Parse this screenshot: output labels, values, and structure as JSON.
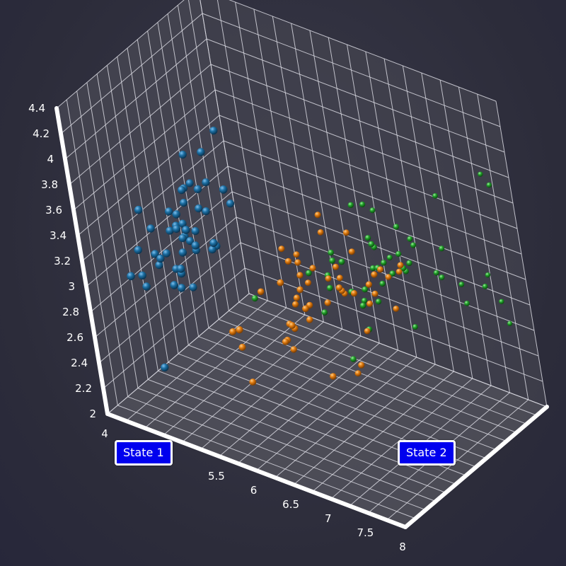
{
  "chart_data": {
    "type": "scatter3d",
    "colors": {
      "series_a": "#1c6fa3",
      "series_b": "#e07b10",
      "series_c": "#22a02a",
      "grid": "#d8d8e0",
      "axis": "#ffffff",
      "background": "#2f2f3e",
      "label_bg": "#0000ee"
    },
    "axes": {
      "x": {
        "range": [
          4,
          8
        ],
        "ticks": [
          "4",
          "4.5",
          "5",
          "5.5",
          "6",
          "6.5",
          "7",
          "7.5",
          "8"
        ]
      },
      "y": {
        "range": [
          2,
          4.4
        ],
        "ticks": [
          "2",
          "2.2",
          "2.4",
          "2.6",
          "2.8",
          "3",
          "3.2",
          "3.4",
          "3.6",
          "3.8",
          "4",
          "4.2",
          "4.4"
        ]
      },
      "z": {
        "range": [
          0,
          7
        ]
      }
    },
    "annotations": [
      {
        "id": "state1",
        "text": "State 1"
      },
      {
        "id": "state2",
        "text": "State 2"
      }
    ],
    "series": [
      {
        "color": "#1c6fa3",
        "points": [
          [
            5.1,
            3.5,
            1.4
          ],
          [
            4.9,
            3.0,
            1.4
          ],
          [
            4.7,
            3.2,
            1.3
          ],
          [
            4.6,
            3.1,
            1.5
          ],
          [
            5.0,
            3.6,
            1.4
          ],
          [
            5.4,
            3.9,
            1.7
          ],
          [
            4.6,
            3.4,
            1.4
          ],
          [
            5.0,
            3.4,
            1.5
          ],
          [
            4.4,
            2.9,
            1.4
          ],
          [
            4.9,
            3.1,
            1.5
          ],
          [
            5.4,
            3.7,
            1.5
          ],
          [
            4.8,
            3.4,
            1.6
          ],
          [
            4.8,
            3.0,
            1.4
          ],
          [
            4.3,
            3.0,
            1.1
          ],
          [
            5.8,
            4.0,
            1.2
          ],
          [
            5.7,
            4.4,
            1.5
          ],
          [
            5.4,
            3.9,
            1.3
          ],
          [
            5.1,
            3.5,
            1.4
          ],
          [
            5.7,
            3.8,
            1.7
          ],
          [
            5.1,
            3.8,
            1.5
          ],
          [
            5.4,
            3.4,
            1.7
          ],
          [
            5.1,
            3.7,
            1.5
          ],
          [
            4.6,
            3.6,
            1.0
          ],
          [
            5.1,
            3.3,
            1.7
          ],
          [
            4.8,
            3.4,
            1.9
          ],
          [
            5.0,
            3.0,
            1.6
          ],
          [
            5.0,
            3.4,
            1.6
          ],
          [
            5.2,
            3.5,
            1.5
          ],
          [
            5.2,
            3.4,
            1.4
          ],
          [
            4.7,
            3.2,
            1.6
          ],
          [
            4.8,
            3.1,
            1.6
          ],
          [
            5.4,
            3.4,
            1.5
          ],
          [
            5.2,
            4.1,
            1.5
          ],
          [
            5.5,
            4.2,
            1.4
          ],
          [
            4.9,
            3.1,
            1.5
          ],
          [
            5.0,
            3.2,
            1.2
          ],
          [
            5.5,
            3.5,
            1.3
          ],
          [
            4.9,
            3.6,
            1.4
          ],
          [
            4.4,
            3.0,
            1.3
          ],
          [
            5.1,
            3.4,
            1.5
          ],
          [
            5.0,
            3.5,
            1.3
          ],
          [
            4.5,
            2.3,
            1.3
          ],
          [
            4.4,
            3.2,
            1.3
          ],
          [
            5.0,
            3.5,
            1.6
          ],
          [
            5.1,
            3.8,
            1.9
          ],
          [
            4.8,
            3.0,
            1.4
          ],
          [
            5.1,
            3.8,
            1.6
          ],
          [
            4.6,
            3.2,
            1.4
          ],
          [
            5.3,
            3.7,
            1.5
          ],
          [
            5.0,
            3.3,
            1.4
          ]
        ]
      },
      {
        "color": "#e07b10",
        "points": [
          [
            7.0,
            3.2,
            4.7
          ],
          [
            6.4,
            3.2,
            4.5
          ],
          [
            6.9,
            3.1,
            4.9
          ],
          [
            5.5,
            2.3,
            4.0
          ],
          [
            6.5,
            2.8,
            4.6
          ],
          [
            5.7,
            2.8,
            4.5
          ],
          [
            6.3,
            3.3,
            4.7
          ],
          [
            4.9,
            2.4,
            3.3
          ],
          [
            6.6,
            2.9,
            4.6
          ],
          [
            5.2,
            2.7,
            3.9
          ],
          [
            5.0,
            2.0,
            3.5
          ],
          [
            5.9,
            3.0,
            4.2
          ],
          [
            6.0,
            2.2,
            4.0
          ],
          [
            6.1,
            2.9,
            4.7
          ],
          [
            5.6,
            2.9,
            3.6
          ],
          [
            6.7,
            3.1,
            4.4
          ],
          [
            5.6,
            3.0,
            4.5
          ],
          [
            5.8,
            2.7,
            4.1
          ],
          [
            6.2,
            2.2,
            4.5
          ],
          [
            5.6,
            2.5,
            3.9
          ],
          [
            5.9,
            3.2,
            4.8
          ],
          [
            6.1,
            2.8,
            4.0
          ],
          [
            6.3,
            2.5,
            4.9
          ],
          [
            6.1,
            2.8,
            4.7
          ],
          [
            6.4,
            2.9,
            4.3
          ],
          [
            6.6,
            3.0,
            4.4
          ],
          [
            6.8,
            2.8,
            4.8
          ],
          [
            6.7,
            3.0,
            5.0
          ],
          [
            6.0,
            2.9,
            4.5
          ],
          [
            5.7,
            2.6,
            3.5
          ],
          [
            5.5,
            2.4,
            3.8
          ],
          [
            5.5,
            2.4,
            3.7
          ],
          [
            5.8,
            2.7,
            3.9
          ],
          [
            6.0,
            2.7,
            5.1
          ],
          [
            5.4,
            3.0,
            4.5
          ],
          [
            6.0,
            3.4,
            4.5
          ],
          [
            6.7,
            3.1,
            4.7
          ],
          [
            6.3,
            2.3,
            4.4
          ],
          [
            5.6,
            3.0,
            4.1
          ],
          [
            5.5,
            2.5,
            4.0
          ],
          [
            5.5,
            2.6,
            4.4
          ],
          [
            6.1,
            3.0,
            4.6
          ],
          [
            5.8,
            2.6,
            4.0
          ],
          [
            5.0,
            2.3,
            3.3
          ],
          [
            5.6,
            2.7,
            4.2
          ],
          [
            5.7,
            3.0,
            4.2
          ],
          [
            5.7,
            2.9,
            4.2
          ],
          [
            6.2,
            2.9,
            4.3
          ],
          [
            5.1,
            2.5,
            3.0
          ],
          [
            5.7,
            2.8,
            4.1
          ]
        ]
      },
      {
        "color": "#22a02a",
        "points": [
          [
            6.3,
            3.3,
            6.0
          ],
          [
            5.8,
            2.7,
            5.1
          ],
          [
            7.1,
            3.0,
            5.9
          ],
          [
            6.3,
            2.9,
            5.6
          ],
          [
            6.5,
            3.0,
            5.8
          ],
          [
            7.6,
            3.0,
            6.6
          ],
          [
            4.9,
            2.5,
            4.5
          ],
          [
            7.3,
            2.9,
            6.3
          ],
          [
            6.7,
            2.5,
            5.8
          ],
          [
            7.2,
            3.6,
            6.1
          ],
          [
            6.5,
            3.2,
            5.1
          ],
          [
            6.4,
            2.7,
            5.3
          ],
          [
            6.8,
            3.0,
            5.5
          ],
          [
            5.7,
            2.5,
            5.0
          ],
          [
            5.8,
            2.8,
            5.1
          ],
          [
            6.4,
            3.2,
            5.3
          ],
          [
            6.5,
            3.0,
            5.5
          ],
          [
            7.7,
            3.8,
            6.7
          ],
          [
            7.7,
            2.6,
            6.9
          ],
          [
            6.0,
            2.2,
            5.0
          ],
          [
            6.9,
            3.2,
            5.7
          ],
          [
            5.6,
            2.8,
            4.9
          ],
          [
            7.7,
            2.8,
            6.7
          ],
          [
            6.3,
            2.7,
            4.9
          ],
          [
            6.7,
            3.3,
            5.7
          ],
          [
            7.2,
            3.2,
            6.0
          ],
          [
            6.2,
            2.8,
            4.8
          ],
          [
            6.1,
            3.0,
            4.9
          ],
          [
            6.4,
            2.8,
            5.6
          ],
          [
            7.2,
            3.0,
            5.8
          ],
          [
            7.4,
            2.8,
            6.1
          ],
          [
            7.9,
            3.8,
            6.4
          ],
          [
            6.4,
            2.8,
            5.6
          ],
          [
            6.3,
            2.8,
            5.1
          ],
          [
            6.1,
            2.6,
            5.6
          ],
          [
            7.7,
            3.0,
            6.1
          ],
          [
            6.3,
            3.4,
            5.6
          ],
          [
            6.4,
            3.1,
            5.5
          ],
          [
            6.0,
            3.0,
            4.8
          ],
          [
            6.9,
            3.1,
            5.4
          ],
          [
            6.7,
            3.1,
            5.6
          ],
          [
            6.9,
            3.1,
            5.1
          ],
          [
            6.8,
            3.2,
            5.9
          ],
          [
            6.7,
            3.3,
            5.7
          ],
          [
            6.7,
            3.0,
            5.2
          ],
          [
            6.3,
            2.5,
            5.0
          ],
          [
            6.5,
            3.0,
            5.2
          ],
          [
            6.2,
            3.4,
            5.4
          ],
          [
            5.9,
            3.0,
            5.1
          ]
        ]
      }
    ]
  }
}
